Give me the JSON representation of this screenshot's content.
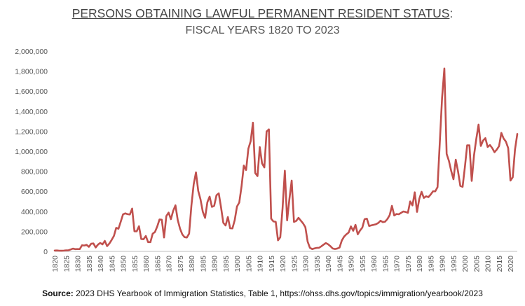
{
  "chart_data": {
    "type": "line",
    "title_main": "PERSONS OBTAINING LAWFUL PERMANENT RESIDENT STATUS",
    "title_colon": ":",
    "subtitle": "FISCAL YEARS 1820 TO 2023",
    "source_label": "Source:",
    "source_text": "2023 DHS Yearbook of Immigration Statistics, Table 1, https://ohss.dhs.gov/topics/immigration/yearbook/2023",
    "line_color": "#c0504d",
    "ylim": [
      0,
      2000000
    ],
    "xlim": [
      1820,
      2023
    ],
    "yticks": [
      {
        "value": 0,
        "label": "0"
      },
      {
        "value": 200000,
        "label": "200,000"
      },
      {
        "value": 400000,
        "label": "400,000"
      },
      {
        "value": 600000,
        "label": "600,000"
      },
      {
        "value": 800000,
        "label": "800,000"
      },
      {
        "value": 1000000,
        "label": "1,000,000"
      },
      {
        "value": 1200000,
        "label": "1,200,000"
      },
      {
        "value": 1400000,
        "label": "1,400,000"
      },
      {
        "value": 1600000,
        "label": "1,600,000"
      },
      {
        "value": 1800000,
        "label": "1,800,000"
      },
      {
        "value": 2000000,
        "label": "2,000,000"
      }
    ],
    "xticks": [
      "1820",
      "1825",
      "1830",
      "1835",
      "1840",
      "1845",
      "1850",
      "1855",
      "1860",
      "1865",
      "1870",
      "1875",
      "1880",
      "1885",
      "1890",
      "1895",
      "1900",
      "1905",
      "1910",
      "1915",
      "1920",
      "1925",
      "1930",
      "1935",
      "1940",
      "1945",
      "1950",
      "1955",
      "1960",
      "1965",
      "1970",
      "1975",
      "1980",
      "1985",
      "1990",
      "1995",
      "2000",
      "2005",
      "2010",
      "2015",
      "2020"
    ],
    "grid": false,
    "series": [
      {
        "x": [
          1820,
          1821,
          1822,
          1823,
          1824,
          1825,
          1826,
          1827,
          1828,
          1829,
          1830,
          1831,
          1832,
          1833,
          1834,
          1835,
          1836,
          1837,
          1838,
          1839,
          1840,
          1841,
          1842,
          1843,
          1844,
          1845,
          1846,
          1847,
          1848,
          1849,
          1850,
          1851,
          1852,
          1853,
          1854,
          1855,
          1856,
          1857,
          1858,
          1859,
          1860,
          1861,
          1862,
          1863,
          1864,
          1865,
          1866,
          1867,
          1868,
          1869,
          1870,
          1871,
          1872,
          1873,
          1874,
          1875,
          1876,
          1877,
          1878,
          1879,
          1880,
          1881,
          1882,
          1883,
          1884,
          1885,
          1886,
          1887,
          1888,
          1889,
          1890,
          1891,
          1892,
          1893,
          1894,
          1895,
          1896,
          1897,
          1898,
          1899,
          1900,
          1901,
          1902,
          1903,
          1904,
          1905,
          1906,
          1907,
          1908,
          1909,
          1910,
          1911,
          1912,
          1913,
          1914,
          1915,
          1916,
          1917,
          1918,
          1919,
          1920,
          1921,
          1922,
          1923,
          1924,
          1925,
          1926,
          1927,
          1928,
          1929,
          1930,
          1931,
          1932,
          1933,
          1934,
          1935,
          1936,
          1937,
          1938,
          1939,
          1940,
          1941,
          1942,
          1943,
          1944,
          1945,
          1946,
          1947,
          1948,
          1949,
          1950,
          1951,
          1952,
          1953,
          1954,
          1955,
          1956,
          1957,
          1958,
          1959,
          1960,
          1961,
          1962,
          1963,
          1964,
          1965,
          1966,
          1967,
          1968,
          1969,
          1970,
          1971,
          1972,
          1973,
          1974,
          1975,
          1976,
          1977,
          1978,
          1979,
          1980,
          1981,
          1982,
          1983,
          1984,
          1985,
          1986,
          1987,
          1988,
          1989,
          1990,
          1991,
          1992,
          1993,
          1994,
          1995,
          1996,
          1997,
          1998,
          1999,
          2000,
          2001,
          2002,
          2003,
          2004,
          2005,
          2006,
          2007,
          2008,
          2009,
          2010,
          2011,
          2012,
          2013,
          2014,
          2015,
          2016,
          2017,
          2018,
          2019,
          2020,
          2021,
          2022,
          2023
        ],
        "y": [
          8385,
          9127,
          6911,
          6354,
          7912,
          10199,
          10837,
          18875,
          27382,
          22520,
          23322,
          22633,
          60482,
          58640,
          65365,
          45374,
          76242,
          79340,
          38914,
          68069,
          84066,
          70171,
          104565,
          52496,
          78615,
          114371,
          154416,
          234968,
          226527,
          297024,
          369980,
          379466,
          371603,
          368645,
          427833,
          200877,
          200436,
          251306,
          123126,
          121282,
          153640,
          91918,
          91985,
          176282,
          193418,
          248120,
          318568,
          315722,
          138840,
          352768,
          387203,
          321350,
          404806,
          459803,
          313339,
          227498,
          169986,
          141857,
          138469,
          177826,
          457257,
          669431,
          788992,
          603322,
          518592,
          395346,
          334203,
          490109,
          546889,
          444427,
          455302,
          560319,
          579663,
          439730,
          285631,
          258536,
          343267,
          230832,
          229299,
          311715,
          448572,
          487918,
          648743,
          857046,
          812870,
          1026499,
          1100735,
          1285349,
          782870,
          751786,
          1041570,
          878587,
          838172,
          1197892,
          1218480,
          326700,
          298826,
          295403,
          110618,
          141132,
          430001,
          805228,
          309556,
          522919,
          706896,
          294314,
          304488,
          335175,
          307255,
          279678,
          241700,
          97139,
          35576,
          23068,
          29470,
          34956,
          36329,
          50244,
          67895,
          82998,
          70756,
          51776,
          28781,
          23725,
          28551,
          38119,
          108721,
          147292,
          170570,
          188317,
          249187,
          205717,
          265520,
          170434,
          208177,
          237790,
          321625,
          326867,
          253265,
          260686,
          265398,
          271344,
          283763,
          306260,
          292248,
          296697,
          323040,
          361972,
          454448,
          358579,
          373326,
          370478,
          384685,
          398515,
          393919,
          385378,
          499093,
          458755,
          589810,
          394244,
          524295,
          595014,
          533624,
          550052,
          541811,
          568149,
          600027,
          599889,
          641346,
          1090172,
          1535872,
          1826595,
          973445,
          903916,
          803993,
          720177,
          915560,
          797847,
          653206,
          644787,
          841002,
          1058902,
          1059356,
          703542,
          957883,
          1122257,
          1266129,
          1052415,
          1107126,
          1130818,
          1042625,
          1062040,
          1031631,
          990553,
          1016518,
          1051031,
          1183505,
          1127167,
          1096611,
          1031765,
          707362,
          740002,
          1018349,
          1172910
        ]
      }
    ]
  }
}
